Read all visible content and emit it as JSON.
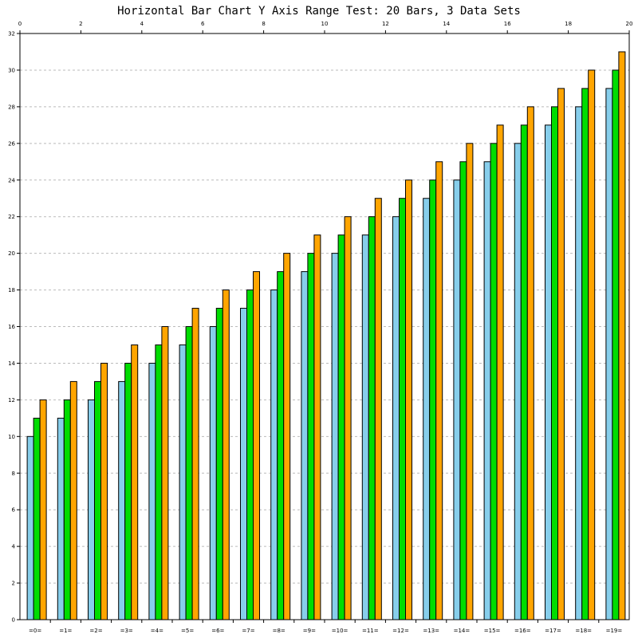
{
  "chart_data": {
    "type": "bar",
    "title": "Horizontal Bar Chart Y Axis Range Test: 20 Bars, 3 Data Sets",
    "categories": [
      "=0=",
      "=1=",
      "=2=",
      "=3=",
      "=4=",
      "=5=",
      "=6=",
      "=7=",
      "=8=",
      "=9=",
      "=10=",
      "=11=",
      "=12=",
      "=13=",
      "=14=",
      "=15=",
      "=16=",
      "=17=",
      "=18=",
      "=19="
    ],
    "series": [
      {
        "values": [
          10,
          11,
          12,
          13,
          14,
          15,
          16,
          17,
          18,
          19,
          20,
          21,
          22,
          23,
          24,
          25,
          26,
          27,
          28,
          29
        ]
      },
      {
        "values": [
          11,
          12,
          13,
          14,
          15,
          16,
          17,
          18,
          19,
          20,
          21,
          22,
          23,
          24,
          25,
          26,
          27,
          28,
          29,
          30
        ]
      },
      {
        "values": [
          12,
          13,
          14,
          15,
          16,
          17,
          18,
          19,
          20,
          21,
          22,
          23,
          24,
          25,
          26,
          27,
          28,
          29,
          30,
          31
        ]
      }
    ],
    "series_colors": [
      "#87ceeb",
      "#00dd00",
      "#ffa500"
    ],
    "ylim": [
      0,
      32
    ],
    "y_ticks": [
      "0",
      "2",
      "4",
      "6",
      "8",
      "10",
      "12",
      "14",
      "16",
      "18",
      "20",
      "22",
      "24",
      "26",
      "28",
      "30",
      "32"
    ],
    "top_axis_ticks": [
      "0",
      "2",
      "4",
      "6",
      "8",
      "10",
      "12",
      "14",
      "16",
      "18",
      "20"
    ],
    "top_axis_range": [
      0,
      20
    ],
    "grid": true,
    "grid_style": "dashed horizontal",
    "legend": "none"
  }
}
